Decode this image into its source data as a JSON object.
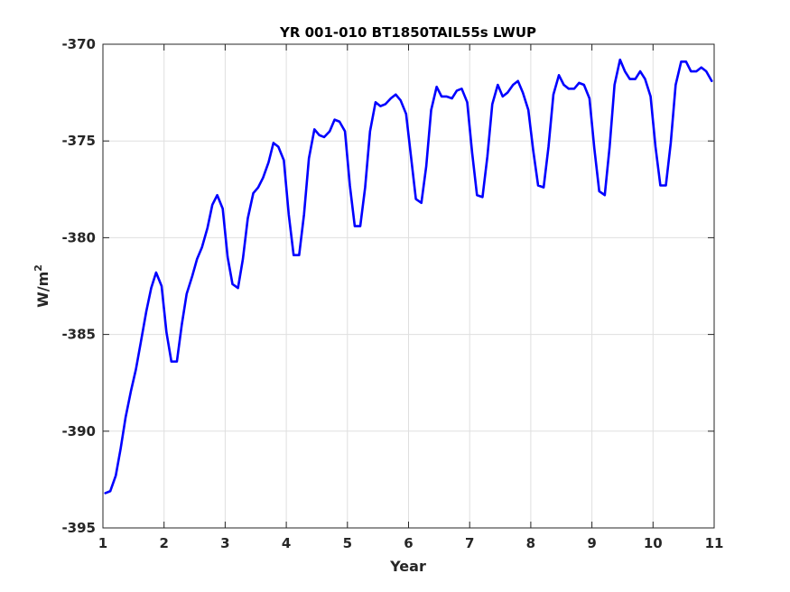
{
  "chart_data": {
    "type": "line",
    "title": "YR 001-010 BT1850TAIL55s LWUP",
    "xlabel": "Year",
    "ylabel": "W/m",
    "ylabel_superscript": "2",
    "xlim": [
      1,
      11
    ],
    "ylim": [
      -395,
      -370
    ],
    "xticks": [
      "1",
      "2",
      "3",
      "4",
      "5",
      "6",
      "7",
      "8",
      "9",
      "10",
      "11"
    ],
    "yticks": [
      "-370",
      "-375",
      "-380",
      "-385",
      "-390",
      "-395"
    ],
    "grid": true,
    "line_color": "#0000ff",
    "x": [
      1.04,
      1.12,
      1.21,
      1.29,
      1.37,
      1.46,
      1.54,
      1.62,
      1.71,
      1.79,
      1.87,
      1.96,
      2.04,
      2.12,
      2.21,
      2.29,
      2.37,
      2.46,
      2.54,
      2.62,
      2.71,
      2.79,
      2.87,
      2.96,
      3.04,
      3.12,
      3.21,
      3.29,
      3.37,
      3.46,
      3.54,
      3.62,
      3.71,
      3.79,
      3.87,
      3.96,
      4.04,
      4.12,
      4.21,
      4.29,
      4.37,
      4.46,
      4.54,
      4.62,
      4.71,
      4.79,
      4.87,
      4.96,
      5.04,
      5.12,
      5.21,
      5.29,
      5.37,
      5.46,
      5.54,
      5.62,
      5.71,
      5.79,
      5.87,
      5.96,
      6.04,
      6.12,
      6.21,
      6.29,
      6.37,
      6.46,
      6.54,
      6.62,
      6.71,
      6.79,
      6.87,
      6.96,
      7.04,
      7.12,
      7.21,
      7.29,
      7.37,
      7.46,
      7.54,
      7.62,
      7.71,
      7.79,
      7.87,
      7.96,
      8.04,
      8.12,
      8.21,
      8.29,
      8.37,
      8.46,
      8.54,
      8.62,
      8.71,
      8.79,
      8.87,
      8.96,
      9.04,
      9.12,
      9.21,
      9.29,
      9.37,
      9.46,
      9.54,
      9.62,
      9.71,
      9.79,
      9.87,
      9.96,
      10.04,
      10.12,
      10.21,
      10.29,
      10.37,
      10.46,
      10.54,
      10.62,
      10.71,
      10.79,
      10.87,
      10.96
    ],
    "y": [
      -393.2,
      -393.1,
      -392.3,
      -390.9,
      -389.3,
      -387.9,
      -386.8,
      -385.4,
      -383.8,
      -382.6,
      -381.8,
      -382.5,
      -384.9,
      -386.4,
      -386.4,
      -384.5,
      -382.9,
      -382.0,
      -381.1,
      -380.5,
      -379.5,
      -378.3,
      -377.8,
      -378.5,
      -381.0,
      -382.4,
      -382.6,
      -381.1,
      -379.0,
      -377.7,
      -377.4,
      -376.9,
      -376.1,
      -375.1,
      -375.3,
      -376.0,
      -378.8,
      -380.9,
      -380.9,
      -378.8,
      -375.9,
      -374.4,
      -374.7,
      -374.8,
      -374.5,
      -373.9,
      -374.0,
      -374.5,
      -377.3,
      -379.4,
      -379.4,
      -377.4,
      -374.5,
      -373.0,
      -373.2,
      -373.1,
      -372.8,
      -372.6,
      -372.9,
      -373.6,
      -375.8,
      -378.0,
      -378.2,
      -376.3,
      -373.4,
      -372.2,
      -372.7,
      -372.7,
      -372.8,
      -372.4,
      -372.3,
      -373.0,
      -375.6,
      -377.8,
      -377.9,
      -375.8,
      -373.1,
      -372.1,
      -372.7,
      -372.5,
      -372.1,
      -371.9,
      -372.5,
      -373.4,
      -375.5,
      -377.3,
      -377.4,
      -375.3,
      -372.6,
      -371.6,
      -372.1,
      -372.3,
      -372.3,
      -372.0,
      -372.1,
      -372.8,
      -375.4,
      -377.6,
      -377.8,
      -375.3,
      -372.1,
      -370.8,
      -371.4,
      -371.8,
      -371.8,
      -371.4,
      -371.8,
      -372.7,
      -375.3,
      -377.3,
      -377.3,
      -375.1,
      -372.1,
      -370.9,
      -370.9,
      -371.4,
      -371.4,
      -371.2,
      -371.4,
      -371.9
    ]
  }
}
